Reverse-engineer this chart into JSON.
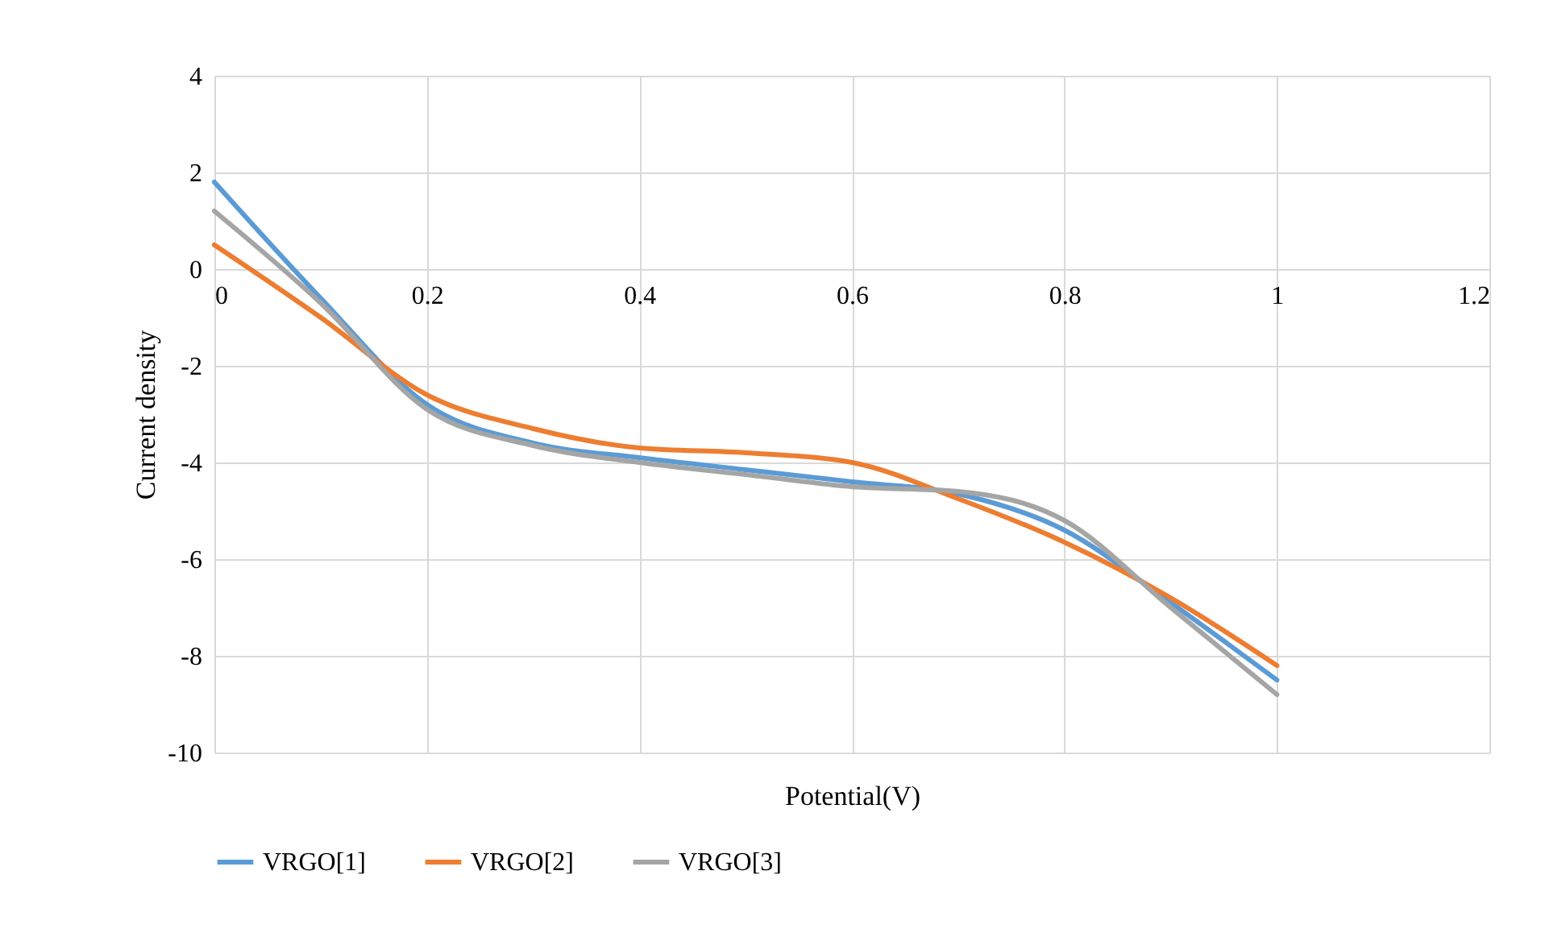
{
  "chart_data": {
    "type": "line",
    "xlabel": "Potential(V)",
    "ylabel": "Current density",
    "x": [
      0,
      0.1,
      0.2,
      0.3,
      0.4,
      0.5,
      0.6,
      0.7,
      0.8,
      0.9,
      1
    ],
    "series": [
      {
        "name": "VRGO[1]",
        "color": "#5b9bd5",
        "values": [
          1.8,
          -0.6,
          -2.8,
          -3.6,
          -3.9,
          -4.15,
          -4.4,
          -4.65,
          -5.4,
          -6.9,
          -8.5
        ]
      },
      {
        "name": "VRGO[2]",
        "color": "#ed7d31",
        "values": [
          0.5,
          -1.0,
          -2.6,
          -3.3,
          -3.7,
          -3.8,
          -4.0,
          -4.75,
          -5.65,
          -6.8,
          -8.2
        ]
      },
      {
        "name": "VRGO[3]",
        "color": "#a5a5a5",
        "values": [
          1.2,
          -0.7,
          -2.9,
          -3.65,
          -4.0,
          -4.25,
          -4.5,
          -4.6,
          -5.2,
          -7.0,
          -8.8
        ]
      }
    ],
    "xlim": [
      0,
      1.2
    ],
    "xticks": [
      0,
      0.2,
      0.4,
      0.6,
      0.8,
      1,
      1.2
    ],
    "ylim": [
      -10,
      4
    ],
    "yticks": [
      -10,
      -8,
      -6,
      -4,
      -2,
      0,
      2,
      4
    ],
    "grid": true,
    "legend": "bottom",
    "marker": "none",
    "line_style": "solid"
  }
}
